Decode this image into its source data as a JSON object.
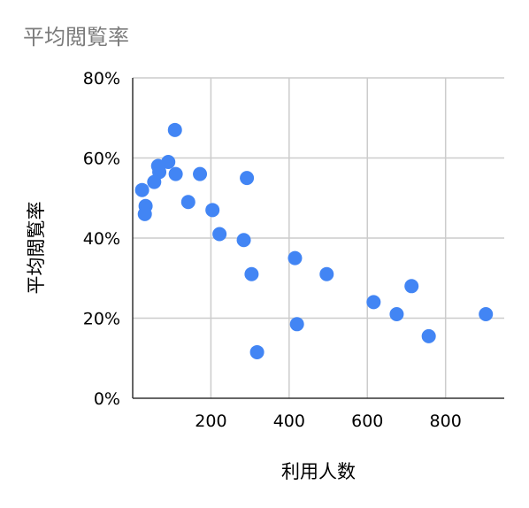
{
  "chart_data": {
    "type": "scatter",
    "title": "平均閲覧率",
    "xlabel": "利用人数",
    "ylabel": "平均閲覧率",
    "xlim": [
      0,
      950
    ],
    "ylim": [
      0,
      80
    ],
    "x_ticks": [
      200,
      400,
      600,
      800
    ],
    "x_tick_labels": [
      "200",
      "400",
      "600",
      "800"
    ],
    "y_ticks": [
      0,
      20,
      40,
      60,
      80
    ],
    "y_tick_labels": [
      "0%",
      "20%",
      "40%",
      "60%",
      "80%"
    ],
    "grid": true,
    "legend": "none",
    "point_color": "#4285f4",
    "points": [
      {
        "x": 108,
        "y": 67
      },
      {
        "x": 91,
        "y": 59
      },
      {
        "x": 65,
        "y": 58
      },
      {
        "x": 68,
        "y": 56.5
      },
      {
        "x": 110,
        "y": 56
      },
      {
        "x": 172,
        "y": 56
      },
      {
        "x": 55,
        "y": 54
      },
      {
        "x": 24,
        "y": 52
      },
      {
        "x": 292,
        "y": 55
      },
      {
        "x": 33,
        "y": 48
      },
      {
        "x": 31,
        "y": 46
      },
      {
        "x": 142,
        "y": 49
      },
      {
        "x": 204,
        "y": 47
      },
      {
        "x": 222,
        "y": 41
      },
      {
        "x": 284,
        "y": 39.5
      },
      {
        "x": 415,
        "y": 35
      },
      {
        "x": 304,
        "y": 31
      },
      {
        "x": 496,
        "y": 31
      },
      {
        "x": 713,
        "y": 28
      },
      {
        "x": 616,
        "y": 24
      },
      {
        "x": 675,
        "y": 21
      },
      {
        "x": 903,
        "y": 21
      },
      {
        "x": 420,
        "y": 18.5
      },
      {
        "x": 757,
        "y": 15.5
      },
      {
        "x": 318,
        "y": 11.5
      }
    ]
  }
}
